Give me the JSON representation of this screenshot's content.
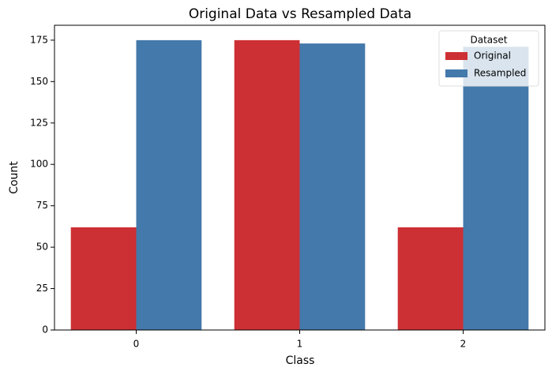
{
  "chart_data": {
    "type": "grouped_bar",
    "title": "Original Data vs Resampled Data",
    "x_label": "Class",
    "y_label": "Count",
    "categories": [
      "0",
      "1",
      "2"
    ],
    "series": [
      {
        "name": "Original",
        "color": "#cd3034",
        "values": [
          62,
          175,
          62
        ]
      },
      {
        "name": "Resampled",
        "color": "#4479ab",
        "values": [
          175,
          173,
          171
        ]
      }
    ],
    "ylim": [
      0,
      184
    ],
    "yticks": [
      0,
      25,
      50,
      75,
      100,
      125,
      150,
      175
    ],
    "legend_title": "Dataset",
    "legend_position": "upper-right",
    "grid": false
  }
}
